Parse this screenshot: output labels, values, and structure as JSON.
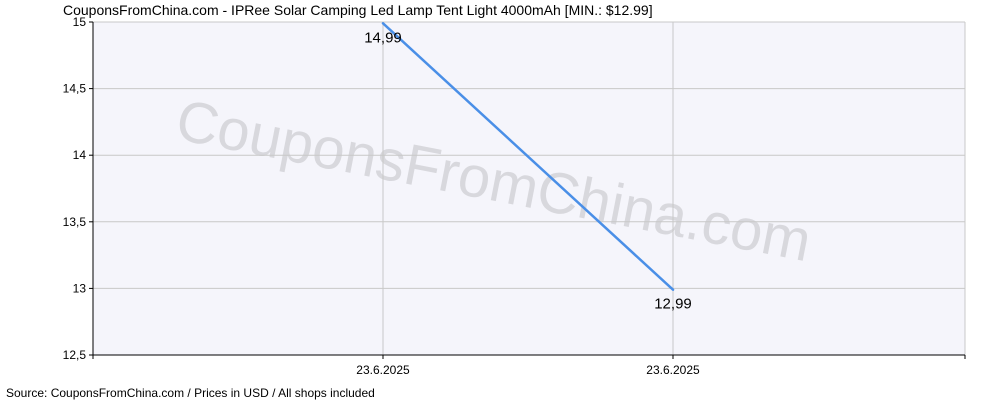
{
  "chart_data": {
    "type": "line",
    "title": "CouponsFromChina.com - IPRee Solar Camping Led Lamp Tent Light 4000mAh [MIN.: $12.99]",
    "source": "Source:  CouponsFromChina.com / Prices in USD / All shops included",
    "watermark": "CouponsFromChina.com",
    "x_ticks": [
      "23.6.2025",
      "23.6.2025"
    ],
    "y_ticks": [
      "15",
      "14,5",
      "14",
      "13,5",
      "13",
      "12,5"
    ],
    "y_tick_values": [
      15,
      14.5,
      14,
      13.5,
      13,
      12.5
    ],
    "ylim": [
      12.5,
      15
    ],
    "grid": true,
    "series": [
      {
        "values": [
          14.99,
          12.99
        ],
        "labels": [
          "14,99",
          "12,99"
        ],
        "color": "#4a8fe7"
      }
    ],
    "colors": {
      "plot_bg": "#f5f5fb",
      "grid": "#c8c8c8",
      "axis": "#000000"
    }
  }
}
